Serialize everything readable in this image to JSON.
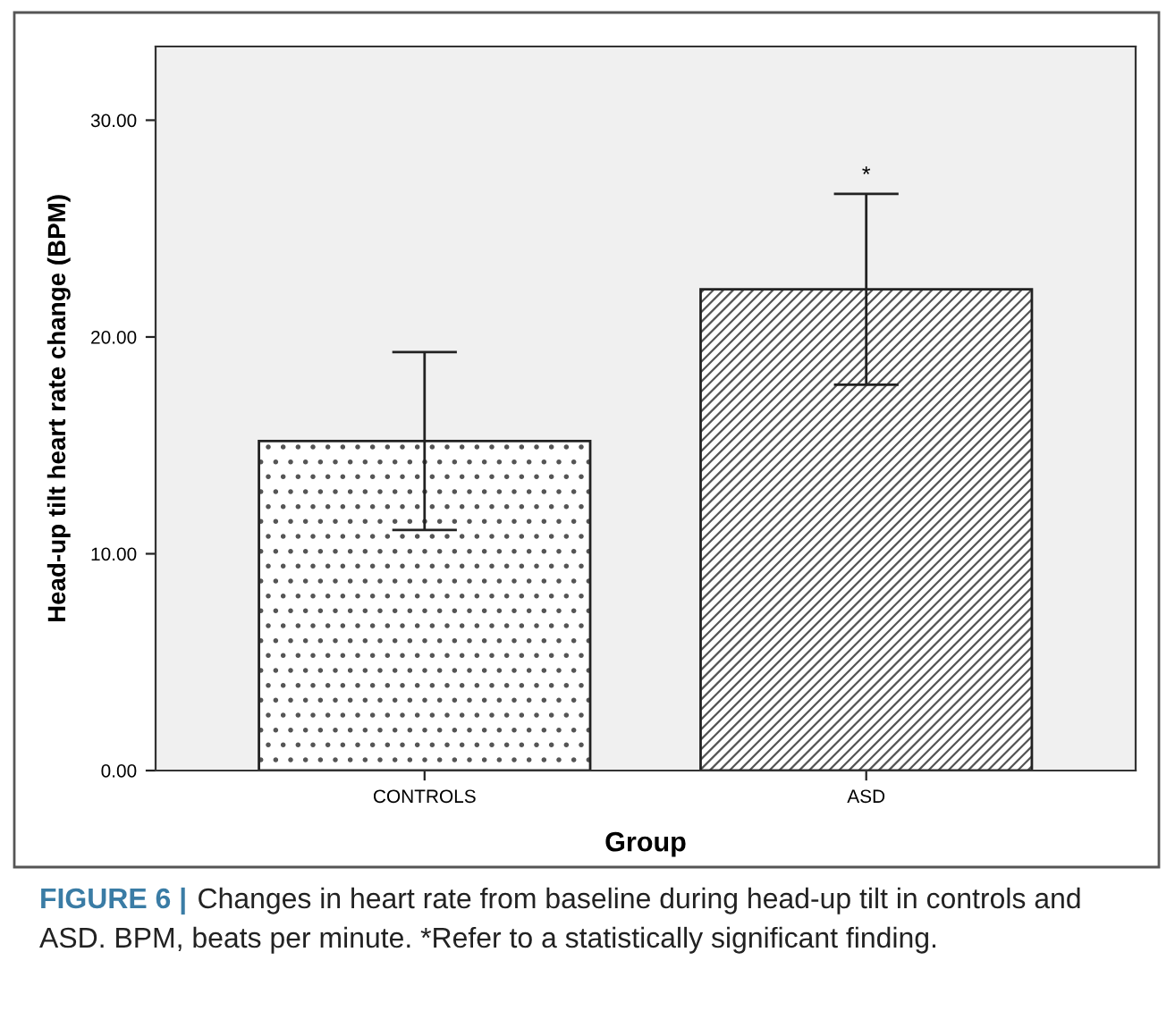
{
  "chart_data": {
    "type": "bar",
    "xlabel": "Group",
    "ylabel": "Head-up tilt heart rate change (BPM)",
    "categories": [
      "CONTROLS",
      "ASD"
    ],
    "values": [
      15.2,
      22.2
    ],
    "errors": [
      [
        11.1,
        19.3
      ],
      [
        17.8,
        26.6
      ]
    ],
    "colors": [
      "#ffffff",
      "#ffffff"
    ],
    "ylim": [
      0,
      33.4
    ],
    "yticks": [
      {
        "value": 0,
        "label": "0.00"
      },
      {
        "value": 10,
        "label": "10.00"
      },
      {
        "value": 20,
        "label": "20.00"
      },
      {
        "value": 30,
        "label": "30.00"
      }
    ],
    "grid": false,
    "annotations": [
      {
        "text": "*",
        "x": "ASD",
        "y": 26.6
      },
      "FIGURE 6 |",
      "Changes in heart rate from baseline during head-up tilt in controls and ASD. BPM, beats per minute. *Refer to a statistically significant finding."
    ]
  }
}
